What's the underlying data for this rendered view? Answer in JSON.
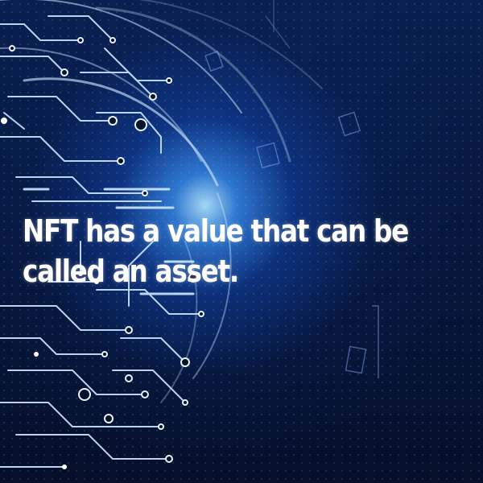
{
  "headline": "NFT has a value that can be called an asset.",
  "colors": {
    "background": "#06122e",
    "glow": "#3c96ff",
    "circuit": "#cfe8ff",
    "text": "#ffffff"
  },
  "decoration": "circuit-board-head-illustration"
}
